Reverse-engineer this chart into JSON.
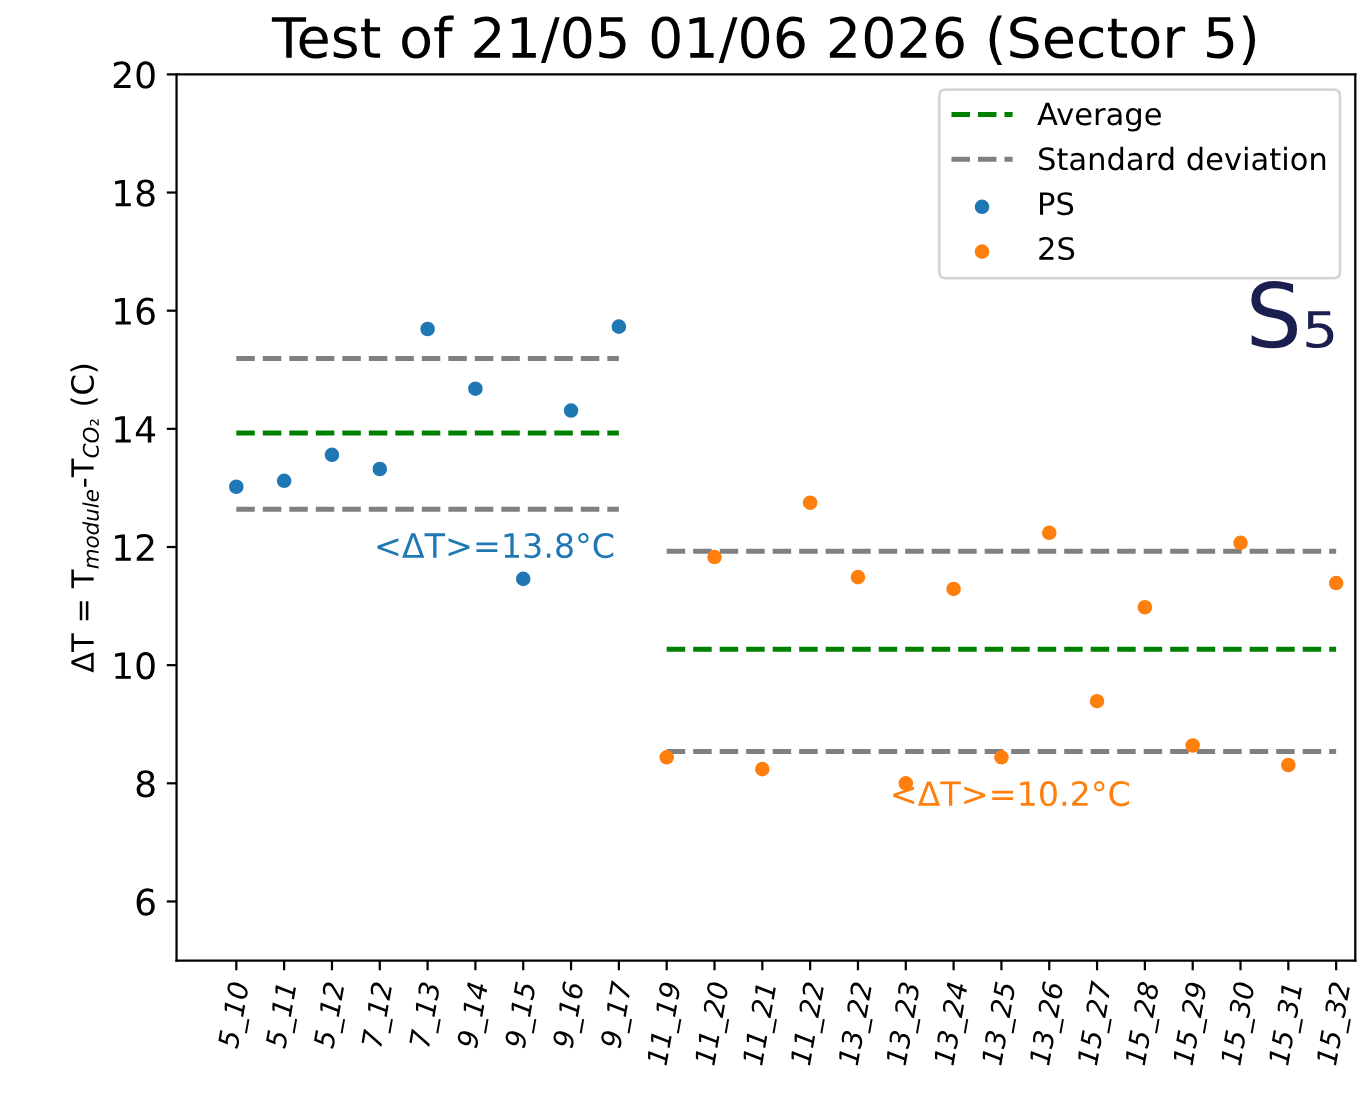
{
  "chart_data": {
    "type": "scatter",
    "title": "Test of 21/05 01/06 2026 (Sector 5)",
    "ylabel": "ΔT = T$_{module}$-T$_{CO₂}$ (C)",
    "categories": [
      "5_10",
      "5_11",
      "5_12",
      "7_12",
      "7_13",
      "9_14",
      "9_15",
      "9_16",
      "9_17",
      "11_19",
      "11_20",
      "11_21",
      "11_22",
      "13_22",
      "13_23",
      "13_24",
      "13_25",
      "13_26",
      "15_27",
      "15_28",
      "15_29",
      "15_30",
      "15_31",
      "15_32"
    ],
    "ylim": [
      5,
      20
    ],
    "yticks": [
      6,
      8,
      10,
      12,
      14,
      16,
      18,
      20
    ],
    "legend": "top right",
    "grid": false,
    "series": [
      {
        "name": "Average",
        "type": "line",
        "line_style": "dashed",
        "color": "#008000",
        "x": [
          "5_10",
          "9_17"
        ],
        "values": [
          13.93,
          13.93
        ]
      },
      {
        "type": "line",
        "line_style": "dashed",
        "color": "#008000",
        "x": [
          "11_19",
          "15_32"
        ],
        "values": [
          10.27,
          10.27
        ]
      },
      {
        "name": "Standard deviation",
        "type": "line",
        "line_style": "dashed",
        "color": "#808080",
        "x": [
          "5_10",
          "9_17"
        ],
        "values": [
          15.19,
          15.19
        ]
      },
      {
        "type": "line",
        "line_style": "dashed",
        "color": "#808080",
        "x": [
          "5_10",
          "9_17"
        ],
        "values": [
          12.64,
          12.64
        ]
      },
      {
        "type": "line",
        "line_style": "dashed",
        "color": "#808080",
        "x": [
          "11_19",
          "15_32"
        ],
        "values": [
          11.93,
          11.93
        ]
      },
      {
        "type": "line",
        "line_style": "dashed",
        "color": "#808080",
        "x": [
          "11_19",
          "15_32"
        ],
        "values": [
          8.54,
          8.54
        ]
      },
      {
        "name": "PS",
        "color": "#1f77b4",
        "x": [
          "5_10",
          "5_11",
          "5_12",
          "7_12",
          "7_13",
          "9_14",
          "9_15",
          "9_16",
          "9_17"
        ],
        "values": [
          13.02,
          13.12,
          13.56,
          13.32,
          15.69,
          14.68,
          11.46,
          14.31,
          15.73
        ]
      },
      {
        "name": "2S",
        "color": "#ff7f0e",
        "x": [
          "11_19",
          "11_20",
          "11_21",
          "11_22",
          "13_22",
          "13_23",
          "13_24",
          "13_25",
          "13_26",
          "15_27",
          "15_28",
          "15_29",
          "15_30",
          "15_31",
          "15_32"
        ],
        "values": [
          8.44,
          11.83,
          8.24,
          12.75,
          11.49,
          8.0,
          11.29,
          8.44,
          12.24,
          9.39,
          10.98,
          8.64,
          12.07,
          8.31,
          11.39
        ]
      }
    ],
    "annotations": [
      "<ΔT>=13.8°C",
      "<ΔT>=10.2°C",
      "S₅"
    ]
  }
}
